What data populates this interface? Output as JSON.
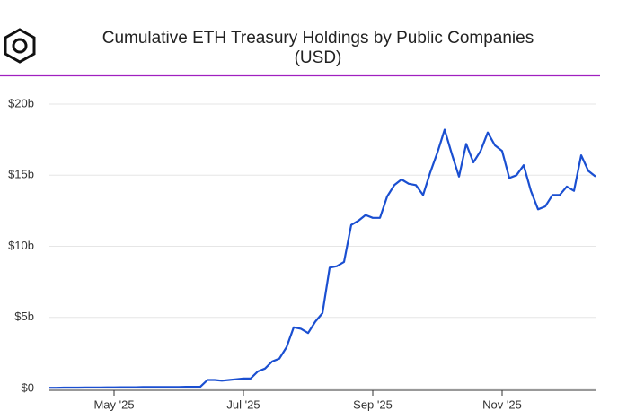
{
  "chart_data": {
    "type": "line",
    "title": "Cumulative ETH Treasury Holdings by Public Companies",
    "subtitle": "(USD)",
    "categories": [
      null,
      null,
      null,
      null,
      null,
      null,
      null,
      null,
      null,
      "May '25",
      null,
      null,
      null,
      null,
      null,
      null,
      null,
      null,
      null,
      null,
      null,
      null,
      null,
      null,
      null,
      null,
      null,
      "Jul '25",
      null,
      null,
      null,
      null,
      null,
      null,
      null,
      null,
      null,
      null,
      null,
      null,
      null,
      null,
      null,
      null,
      null,
      "Sep '25",
      null,
      null,
      null,
      null,
      null,
      null,
      null,
      null,
      null,
      null,
      null,
      null,
      null,
      null,
      null,
      null,
      null,
      "Nov '25",
      null,
      null,
      null,
      null,
      null,
      null,
      null,
      null,
      null,
      null,
      null,
      null,
      null
    ],
    "series": [
      {
        "name": "ETH Treasury Holdings",
        "color": "#1a4fd1",
        "values": [
          0.05,
          0.05,
          0.06,
          0.06,
          0.06,
          0.07,
          0.07,
          0.07,
          0.08,
          0.08,
          0.09,
          0.09,
          0.09,
          0.1,
          0.1,
          0.1,
          0.11,
          0.11,
          0.11,
          0.12,
          0.12,
          0.12,
          0.6,
          0.6,
          0.55,
          0.6,
          0.65,
          0.7,
          0.7,
          1.2,
          1.4,
          1.9,
          2.1,
          2.9,
          4.3,
          4.2,
          3.9,
          4.7,
          5.3,
          8.5,
          8.6,
          8.9,
          11.5,
          11.8,
          12.2,
          12.0,
          12.0,
          13.5,
          14.3,
          14.7,
          14.4,
          14.3,
          13.6,
          15.2,
          16.6,
          18.2,
          16.5,
          14.9,
          17.2,
          15.9,
          16.7,
          18.0,
          17.1,
          16.7,
          14.8,
          15.0,
          15.7,
          13.9,
          12.6,
          12.8,
          13.6,
          13.6,
          14.2,
          13.9,
          16.4,
          15.3,
          14.9
        ]
      }
    ],
    "ylim": [
      0,
      20
    ],
    "yticks": [
      {
        "value": 0,
        "label": "$0"
      },
      {
        "value": 5,
        "label": "$5b"
      },
      {
        "value": 10,
        "label": "$10b"
      },
      {
        "value": 15,
        "label": "$15b"
      },
      {
        "value": 20,
        "label": "$20b"
      }
    ],
    "grid": true
  }
}
